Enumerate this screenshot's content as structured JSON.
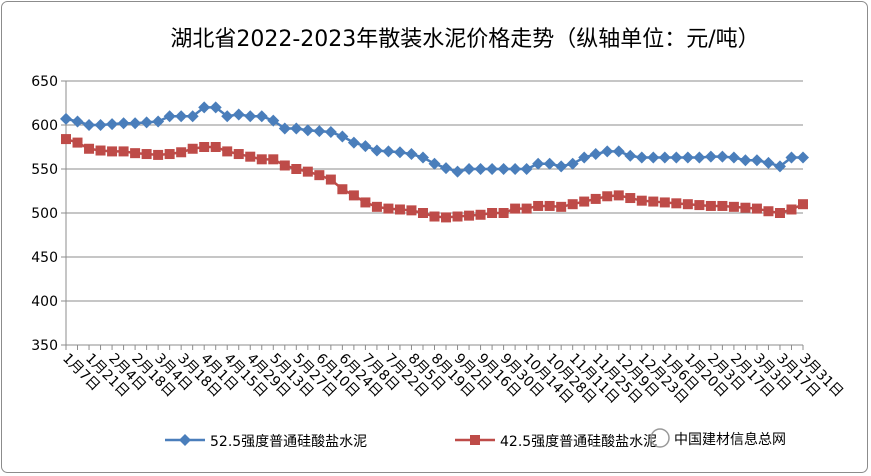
{
  "chart_data": {
    "type": "line",
    "title": "湖北省2022-2023年散装水泥价格走势（纵轴单位：元/吨）",
    "categories": [
      "1月7日",
      null,
      "1月21日",
      null,
      "2月4日",
      null,
      "2月18日",
      null,
      "3月4日",
      null,
      "3月18日",
      null,
      "4月1日",
      null,
      "4月15日",
      null,
      "4月29日",
      null,
      "5月13日",
      null,
      "5月27日",
      null,
      "6月10日",
      null,
      "6月24日",
      null,
      "7月8日",
      null,
      "7月22日",
      null,
      "8月5日",
      null,
      "8月19日",
      null,
      "9月2日",
      null,
      "9月16日",
      null,
      "9月30日",
      null,
      "10月14日",
      null,
      "10月28日",
      null,
      "11月11日",
      null,
      "11月25日",
      null,
      "12月9日",
      null,
      "12月23日",
      null,
      "1月6日",
      null,
      "1月20日",
      null,
      "2月3日",
      null,
      "2月17日",
      null,
      "3月3日",
      null,
      "3月17日",
      null,
      "3月31日"
    ],
    "series": [
      {
        "name": "52.5强度普通硅酸盐水泥",
        "color": "#4a7ebb",
        "marker": "diamond",
        "values": [
          607,
          604,
          600,
          600,
          601,
          602,
          602,
          603,
          604,
          610,
          610,
          610,
          620,
          620,
          610,
          612,
          610,
          610,
          605,
          596,
          596,
          594,
          593,
          592,
          587,
          580,
          576,
          571,
          570,
          569,
          567,
          563,
          556,
          551,
          547,
          550,
          550,
          550,
          550,
          550,
          550,
          556,
          556,
          553,
          556,
          563,
          567,
          570,
          570,
          565,
          563,
          563,
          563,
          563,
          563,
          563,
          564,
          564,
          563,
          560,
          560,
          557,
          553,
          563,
          563
        ]
      },
      {
        "name": "42.5强度普通硅酸盐水泥",
        "color": "#be4b48",
        "marker": "square",
        "values": [
          584,
          580,
          573,
          571,
          570,
          570,
          568,
          567,
          566,
          567,
          569,
          573,
          575,
          575,
          570,
          567,
          564,
          561,
          561,
          554,
          550,
          547,
          543,
          538,
          527,
          520,
          512,
          507,
          505,
          504,
          503,
          500,
          496,
          495,
          496,
          497,
          498,
          500,
          500,
          505,
          505,
          508,
          508,
          507,
          510,
          513,
          516,
          519,
          520,
          517,
          514,
          513,
          512,
          511,
          510,
          509,
          508,
          508,
          507,
          506,
          505,
          502,
          500,
          504,
          510
        ]
      }
    ],
    "ylim": [
      350,
      650
    ],
    "yticks": [
      350,
      400,
      450,
      500,
      550,
      600,
      650
    ],
    "grid": true,
    "legend": "bottom",
    "watermark": "中国建材信息总网"
  }
}
